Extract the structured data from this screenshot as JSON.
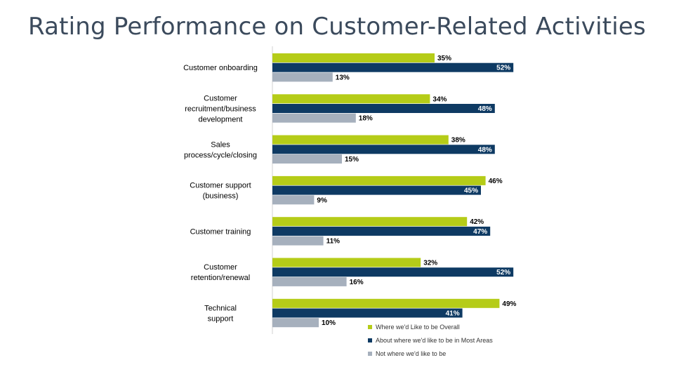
{
  "chart_data": {
    "type": "bar",
    "orientation": "horizontal",
    "title": "Rating Performance on Customer-Related Activities",
    "xlabel": "",
    "ylabel": "",
    "xlim": [
      0,
      60
    ],
    "unit_suffix": "%",
    "grid": false,
    "legend_position": "bottom-right",
    "categories": [
      [
        "Customer onboarding"
      ],
      [
        "Customer",
        "recruitment/business",
        "development"
      ],
      [
        "Sales",
        "process/cycle/closing"
      ],
      [
        "Customer support",
        "(business)"
      ],
      [
        "Customer training"
      ],
      [
        "Customer",
        "retention/renewal"
      ],
      [
        "Technical",
        "support"
      ]
    ],
    "series": [
      {
        "name": "Where we'd Like to be Overall",
        "color": "#b5cc18",
        "label_color": "#000000",
        "label_inside": false,
        "values": [
          35,
          34,
          38,
          46,
          42,
          32,
          49
        ]
      },
      {
        "name": "About where we'd like to be in Most Areas",
        "color": "#0e3a63",
        "label_color": "#ffffff",
        "label_inside": true,
        "values": [
          52,
          48,
          48,
          45,
          47,
          52,
          41
        ]
      },
      {
        "name": "Not where we'd like to be",
        "color": "#a6b0bd",
        "label_color": "#000000",
        "label_inside": false,
        "values": [
          13,
          18,
          15,
          9,
          11,
          16,
          10
        ]
      }
    ]
  }
}
